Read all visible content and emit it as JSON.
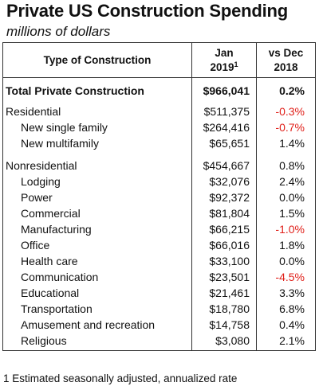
{
  "title": "Private US Construction Spending",
  "subtitle": "millions of dollars",
  "table": {
    "headers": {
      "type": "Type of Construction",
      "jan_line1": "Jan",
      "jan_line2": "2019",
      "jan_note": "1",
      "vs_line1": "vs Dec",
      "vs_line2": "2018"
    },
    "total": {
      "label": "Total Private Construction",
      "value": "$966,041",
      "change": "0.2%"
    },
    "residential": [
      {
        "label": "Residential",
        "value": "$511,375",
        "change": "-0.3%",
        "negative": true,
        "indent": false
      },
      {
        "label": "New single family",
        "value": "$264,416",
        "change": "-0.7%",
        "negative": true,
        "indent": true
      },
      {
        "label": "New multifamily",
        "value": "$65,651",
        "change": "1.4%",
        "negative": false,
        "indent": true
      }
    ],
    "nonresidential": [
      {
        "label": "Nonresidential",
        "value": "$454,667",
        "change": "0.8%",
        "negative": false,
        "indent": false
      },
      {
        "label": "Lodging",
        "value": "$32,076",
        "change": "2.4%",
        "negative": false,
        "indent": true
      },
      {
        "label": "Power",
        "value": "$92,372",
        "change": "0.0%",
        "negative": false,
        "indent": true
      },
      {
        "label": "Commercial",
        "value": "$81,804",
        "change": "1.5%",
        "negative": false,
        "indent": true
      },
      {
        "label": "Manufacturing",
        "value": "$66,215",
        "change": "-1.0%",
        "negative": true,
        "indent": true
      },
      {
        "label": "Office",
        "value": "$66,016",
        "change": "1.8%",
        "negative": false,
        "indent": true
      },
      {
        "label": "Health care",
        "value": "$33,100",
        "change": "0.0%",
        "negative": false,
        "indent": true
      },
      {
        "label": "Communication",
        "value": "$23,501",
        "change": "-4.5%",
        "negative": true,
        "indent": true
      },
      {
        "label": "Educational",
        "value": "$21,461",
        "change": "3.3%",
        "negative": false,
        "indent": true
      },
      {
        "label": "Transportation",
        "value": "$18,780",
        "change": "6.8%",
        "negative": false,
        "indent": true
      },
      {
        "label": "Amusement and recreation",
        "value": "$14,758",
        "change": "0.4%",
        "negative": false,
        "indent": true
      },
      {
        "label": "Religious",
        "value": "$3,080",
        "change": "2.1%",
        "negative": false,
        "indent": true
      }
    ]
  },
  "footnote": "1 Estimated seasonally adjusted, annualized rate",
  "colors": {
    "negative": "#e0201a",
    "text": "#111111"
  }
}
